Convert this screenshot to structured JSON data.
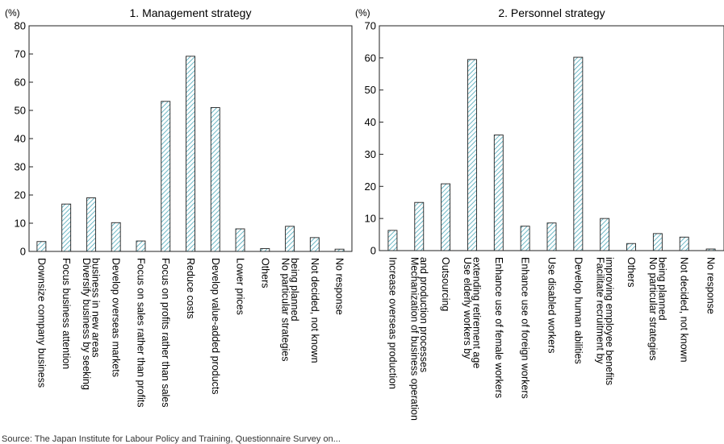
{
  "chart_data": [
    {
      "type": "bar",
      "title": "1. Management strategy",
      "ylabel": "(%)",
      "ylim": [
        0,
        80
      ],
      "yticks": [
        0,
        10,
        20,
        30,
        40,
        50,
        60,
        70,
        80
      ],
      "bar_fill": "hatched",
      "bar_color": "#8fcfd8",
      "categories": [
        [
          "Downsize company business"
        ],
        [
          "Focus business attention"
        ],
        [
          "Diversify business by seeking",
          "business in new areas"
        ],
        [
          "Develop overseas markets"
        ],
        [
          "Focus on sales rather than profits"
        ],
        [
          "Focus on profits rather than sales"
        ],
        [
          "Reduce costs"
        ],
        [
          "Develop value-added products"
        ],
        [
          "Lower prices"
        ],
        [
          "Others"
        ],
        [
          "No particular strategies",
          "being planned"
        ],
        [
          "Not decided, not known"
        ],
        [
          "No response"
        ]
      ],
      "values": [
        3.5,
        16.8,
        19.0,
        10.2,
        3.7,
        53.2,
        69.2,
        51.0,
        8.0,
        1.0,
        8.9,
        4.9,
        0.8
      ]
    },
    {
      "type": "bar",
      "title": "2. Personnel strategy",
      "ylabel": "(%)",
      "ylim": [
        0,
        70
      ],
      "yticks": [
        0,
        10,
        20,
        30,
        40,
        50,
        60,
        70
      ],
      "bar_fill": "hatched",
      "bar_color": "#8fcfd8",
      "categories": [
        [
          "Increase overseas production"
        ],
        [
          "Mechanization of business operation",
          "and production processes"
        ],
        [
          "Outsourcing"
        ],
        [
          "Use elderly workers by",
          "extending retirement age"
        ],
        [
          "Enhance use of female workers"
        ],
        [
          "Enhance use of foreign workers"
        ],
        [
          "Use disabled workers"
        ],
        [
          "Develop human abilities"
        ],
        [
          "Facilitate recruitment by",
          "improving employee benefits"
        ],
        [
          "Others"
        ],
        [
          "No particular strategies",
          "being planned"
        ],
        [
          "Not decided, not known"
        ],
        [
          "No response"
        ]
      ],
      "values": [
        6.3,
        15.0,
        20.8,
        59.5,
        36.0,
        7.6,
        8.6,
        60.2,
        10.0,
        2.2,
        5.3,
        4.2,
        0.5
      ]
    }
  ],
  "source_note": "Source: The Japan Institute for Labour Policy and Training, Questionnaire Survey on..."
}
